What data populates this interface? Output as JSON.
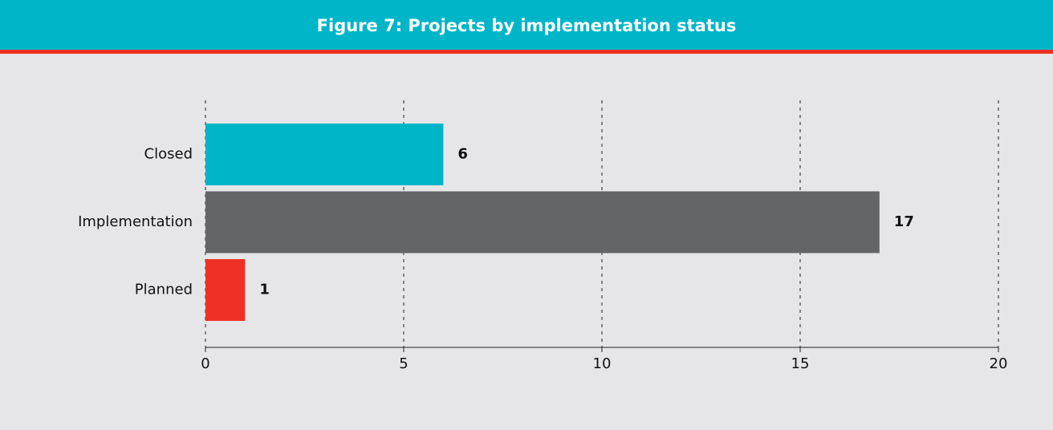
{
  "chart_data": {
    "type": "bar",
    "orientation": "horizontal",
    "title": "Figure 7: Projects by implementation status",
    "categories": [
      "Closed",
      "Implementation",
      "Planned"
    ],
    "values": [
      6,
      17,
      1
    ],
    "colors": [
      "#00b5c8",
      "#646567",
      "#ee3124"
    ],
    "xlim": [
      0,
      20
    ],
    "xticks": [
      0,
      5,
      10,
      15,
      20
    ],
    "grid": true
  }
}
